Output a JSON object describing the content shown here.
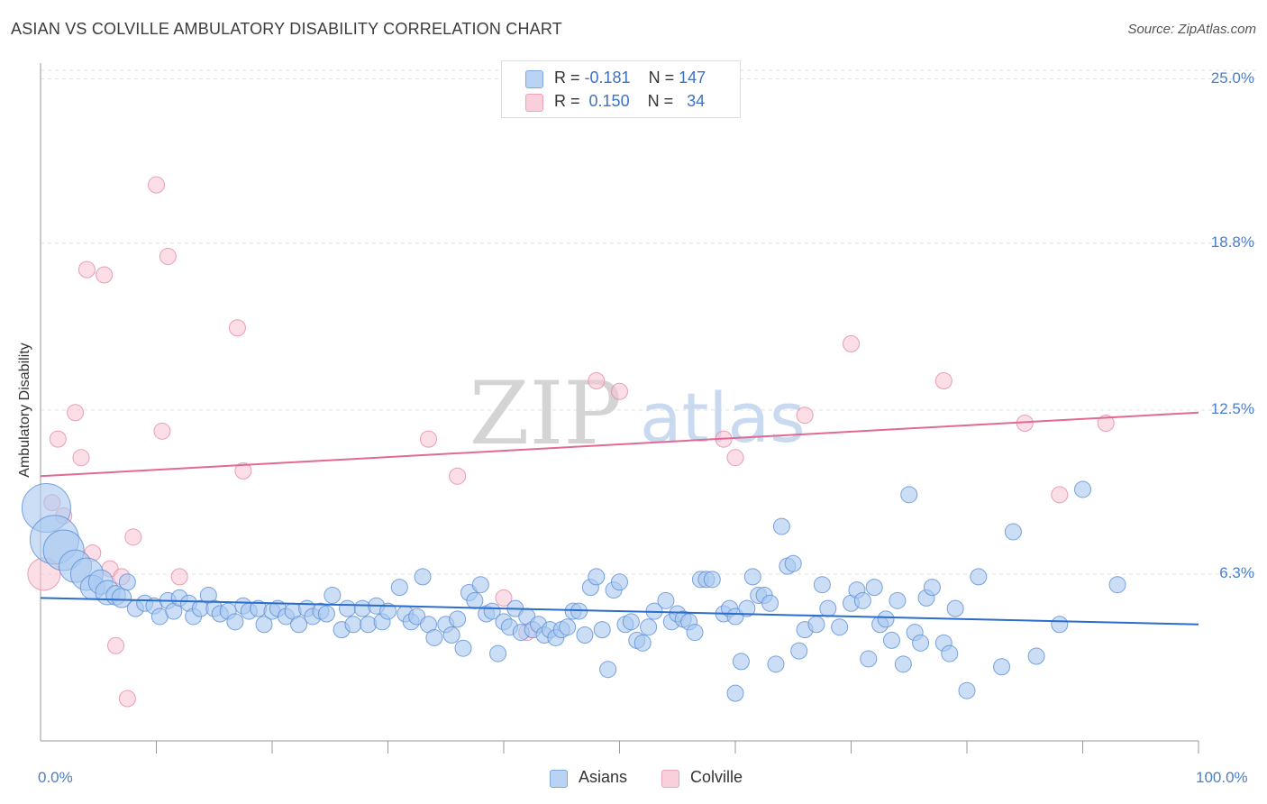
{
  "title": "ASIAN VS COLVILLE AMBULATORY DISABILITY CORRELATION CHART",
  "source": "Source: ZipAtlas.com",
  "watermark": {
    "zip": "ZIP",
    "atlas": "atlas"
  },
  "colors": {
    "asians_fill": "#a9c8f0",
    "asians_stroke": "#5b8fd6",
    "asians_line": "#2b6ccc",
    "colville_fill": "#f7c3d2",
    "colville_stroke": "#e48aa6",
    "colville_line": "#e06a93",
    "tick_label": "#4a7fcb"
  },
  "legend": {
    "rows": [
      {
        "r_label": "R = ",
        "r_value": "-0.181",
        "n_label": "N = ",
        "n_value": "147"
      },
      {
        "r_label": "R = ",
        "r_value": "0.150",
        "n_label": "N = ",
        "n_value": "34"
      }
    ]
  },
  "bottom_legend": {
    "asians": "Asians",
    "colville": "Colville"
  },
  "chart_data": {
    "type": "scatter",
    "ylabel": "Ambulatory Disability",
    "xlim": [
      0,
      100
    ],
    "ylim": [
      0,
      25.6
    ],
    "y_ticks": [
      {
        "value": 6.3,
        "label": "6.3%"
      },
      {
        "value": 12.5,
        "label": "12.5%"
      },
      {
        "value": 18.8,
        "label": "18.8%"
      },
      {
        "value": 25.0,
        "label": "25.0%"
      }
    ],
    "x_tick_labels": [
      {
        "value": 0,
        "label": "0.0%"
      },
      {
        "value": 100,
        "label": "100.0%"
      }
    ],
    "series": [
      {
        "name": "Asians",
        "trend": {
          "x": [
            0,
            100
          ],
          "y": [
            5.4,
            4.4
          ]
        },
        "points": [
          [
            0.5,
            8.8,
            3
          ],
          [
            1.2,
            7.6,
            3
          ],
          [
            2.0,
            7.2,
            2.5
          ],
          [
            3.0,
            6.6,
            2
          ],
          [
            4.0,
            6.3,
            2
          ],
          [
            4.5,
            5.8,
            1.5
          ],
          [
            5.2,
            6.0,
            1.5
          ],
          [
            5.8,
            5.6,
            1.5
          ],
          [
            6.5,
            5.5,
            1.2
          ],
          [
            7.0,
            5.4,
            1.2
          ],
          [
            7.5,
            6.0,
            1
          ],
          [
            8.2,
            5.0,
            1
          ],
          [
            9.0,
            5.2,
            1
          ],
          [
            9.8,
            5.1,
            1
          ],
          [
            10.3,
            4.7,
            1
          ],
          [
            11.0,
            5.3,
            1
          ],
          [
            11.5,
            4.9,
            1
          ],
          [
            12.0,
            5.4,
            1
          ],
          [
            12.8,
            5.2,
            1
          ],
          [
            13.2,
            4.7,
            1
          ],
          [
            13.8,
            5.0,
            1
          ],
          [
            14.5,
            5.5,
            1
          ],
          [
            15.0,
            5.0,
            1
          ],
          [
            15.5,
            4.8,
            1
          ],
          [
            16.2,
            4.9,
            1
          ],
          [
            16.8,
            4.5,
            1
          ],
          [
            17.5,
            5.1,
            1
          ],
          [
            18.0,
            4.9,
            1
          ],
          [
            18.8,
            5.0,
            1
          ],
          [
            19.3,
            4.4,
            1
          ],
          [
            20.0,
            4.9,
            1
          ],
          [
            20.5,
            5.0,
            1
          ],
          [
            21.2,
            4.7,
            1
          ],
          [
            21.8,
            4.9,
            1
          ],
          [
            22.3,
            4.4,
            1
          ],
          [
            23.0,
            5.0,
            1
          ],
          [
            23.5,
            4.7,
            1
          ],
          [
            24.2,
            4.9,
            1
          ],
          [
            24.7,
            4.8,
            1
          ],
          [
            25.2,
            5.5,
            1
          ],
          [
            26.0,
            4.2,
            1
          ],
          [
            26.5,
            5.0,
            1
          ],
          [
            27.0,
            4.4,
            1
          ],
          [
            27.8,
            5.0,
            1
          ],
          [
            28.3,
            4.4,
            1
          ],
          [
            29.0,
            5.1,
            1
          ],
          [
            29.5,
            4.5,
            1
          ],
          [
            30.0,
            4.9,
            1
          ],
          [
            31.0,
            5.8,
            1
          ],
          [
            31.5,
            4.8,
            1
          ],
          [
            32.0,
            4.5,
            1
          ],
          [
            32.5,
            4.7,
            1
          ],
          [
            33.0,
            6.2,
            1
          ],
          [
            33.5,
            4.4,
            1
          ],
          [
            34.0,
            3.9,
            1
          ],
          [
            35.0,
            4.4,
            1
          ],
          [
            35.5,
            4.0,
            1
          ],
          [
            36.0,
            4.6,
            1
          ],
          [
            36.5,
            3.5,
            1
          ],
          [
            37.0,
            5.6,
            1
          ],
          [
            37.5,
            5.3,
            1
          ],
          [
            38.0,
            5.9,
            1
          ],
          [
            38.5,
            4.8,
            1
          ],
          [
            39.0,
            4.9,
            1
          ],
          [
            39.5,
            3.3,
            1
          ],
          [
            40.0,
            4.5,
            1
          ],
          [
            40.5,
            4.3,
            1
          ],
          [
            41.0,
            5.0,
            1
          ],
          [
            41.5,
            4.1,
            1
          ],
          [
            42.0,
            4.7,
            1
          ],
          [
            42.5,
            4.2,
            1
          ],
          [
            43.0,
            4.4,
            1
          ],
          [
            43.5,
            4.0,
            1
          ],
          [
            44.0,
            4.2,
            1
          ],
          [
            44.5,
            3.9,
            1
          ],
          [
            45.0,
            4.2,
            1
          ],
          [
            45.5,
            4.3,
            1
          ],
          [
            46.0,
            4.9,
            1
          ],
          [
            46.5,
            4.9,
            1
          ],
          [
            47.0,
            4.0,
            1
          ],
          [
            47.5,
            5.8,
            1
          ],
          [
            48.0,
            6.2,
            1
          ],
          [
            48.5,
            4.2,
            1
          ],
          [
            49.0,
            2.7,
            1
          ],
          [
            49.5,
            5.7,
            1
          ],
          [
            50.0,
            6.0,
            1
          ],
          [
            50.5,
            4.4,
            1
          ],
          [
            51.0,
            4.5,
            1
          ],
          [
            51.5,
            3.8,
            1
          ],
          [
            52.0,
            3.7,
            1
          ],
          [
            52.5,
            4.3,
            1
          ],
          [
            53.0,
            4.9,
            1
          ],
          [
            54.0,
            5.3,
            1
          ],
          [
            54.5,
            4.5,
            1
          ],
          [
            55.0,
            4.8,
            1
          ],
          [
            55.5,
            4.6,
            1
          ],
          [
            56.0,
            4.5,
            1
          ],
          [
            56.5,
            4.1,
            1
          ],
          [
            57.0,
            6.1,
            1
          ],
          [
            57.5,
            6.1,
            1
          ],
          [
            58.0,
            6.1,
            1
          ],
          [
            59.0,
            4.8,
            1
          ],
          [
            59.5,
            5.0,
            1
          ],
          [
            60.0,
            4.7,
            1
          ],
          [
            60.5,
            3.0,
            1
          ],
          [
            61.0,
            5.0,
            1
          ],
          [
            61.5,
            6.2,
            1
          ],
          [
            62.0,
            5.5,
            1
          ],
          [
            62.5,
            5.5,
            1
          ],
          [
            63.0,
            5.2,
            1
          ],
          [
            63.5,
            2.9,
            1
          ],
          [
            64.0,
            8.1,
            1
          ],
          [
            64.5,
            6.6,
            1
          ],
          [
            65.0,
            6.7,
            1
          ],
          [
            65.5,
            3.4,
            1
          ],
          [
            66.0,
            4.2,
            1
          ],
          [
            67.0,
            4.4,
            1
          ],
          [
            67.5,
            5.9,
            1
          ],
          [
            68.0,
            5.0,
            1
          ],
          [
            69.0,
            4.3,
            1
          ],
          [
            70.0,
            5.2,
            1
          ],
          [
            70.5,
            5.7,
            1
          ],
          [
            71.0,
            5.3,
            1
          ],
          [
            71.5,
            3.1,
            1
          ],
          [
            72.0,
            5.8,
            1
          ],
          [
            72.5,
            4.4,
            1
          ],
          [
            73.0,
            4.6,
            1
          ],
          [
            73.5,
            3.8,
            1
          ],
          [
            74.0,
            5.3,
            1
          ],
          [
            74.5,
            2.9,
            1
          ],
          [
            75.0,
            9.3,
            1
          ],
          [
            75.5,
            4.1,
            1
          ],
          [
            76.0,
            3.7,
            1
          ],
          [
            76.5,
            5.4,
            1
          ],
          [
            77.0,
            5.8,
            1
          ],
          [
            78.0,
            3.7,
            1
          ],
          [
            78.5,
            3.3,
            1
          ],
          [
            79.0,
            5.0,
            1
          ],
          [
            80.0,
            1.9,
            1
          ],
          [
            81.0,
            6.2,
            1
          ],
          [
            83.0,
            2.8,
            1
          ],
          [
            84.0,
            7.9,
            1
          ],
          [
            86.0,
            3.2,
            1
          ],
          [
            88.0,
            4.4,
            1
          ],
          [
            90.0,
            9.5,
            1
          ],
          [
            93.0,
            5.9,
            1
          ],
          [
            60.0,
            1.8,
            1
          ]
        ]
      },
      {
        "name": "Colville",
        "trend": {
          "x": [
            0,
            100
          ],
          "y": [
            10.0,
            12.4
          ]
        },
        "points": [
          [
            0.3,
            6.3,
            2
          ],
          [
            1.0,
            9.0,
            1
          ],
          [
            1.5,
            11.4,
            1
          ],
          [
            2.0,
            8.5,
            1
          ],
          [
            3.0,
            12.4,
            1
          ],
          [
            3.5,
            10.7,
            1
          ],
          [
            4.0,
            17.8,
            1
          ],
          [
            4.5,
            7.1,
            1
          ],
          [
            5.5,
            17.6,
            1
          ],
          [
            6.0,
            6.5,
            1
          ],
          [
            6.5,
            3.6,
            1
          ],
          [
            7.0,
            6.2,
            1
          ],
          [
            7.5,
            1.6,
            1
          ],
          [
            8.0,
            7.7,
            1
          ],
          [
            10.0,
            21.0,
            1
          ],
          [
            10.5,
            11.7,
            1
          ],
          [
            11.0,
            18.3,
            1
          ],
          [
            12.0,
            6.2,
            1
          ],
          [
            17.0,
            15.6,
            1
          ],
          [
            17.5,
            10.2,
            1
          ],
          [
            33.5,
            11.4,
            1
          ],
          [
            36.0,
            10.0,
            1
          ],
          [
            40.0,
            5.4,
            1
          ],
          [
            42.0,
            4.1,
            1
          ],
          [
            48.0,
            13.6,
            1
          ],
          [
            50.0,
            13.2,
            1
          ],
          [
            59.0,
            11.4,
            1
          ],
          [
            60.0,
            10.7,
            1
          ],
          [
            66.0,
            12.3,
            1
          ],
          [
            70.0,
            15.0,
            1
          ],
          [
            78.0,
            13.6,
            1
          ],
          [
            85.0,
            12.0,
            1
          ],
          [
            88.0,
            9.3,
            1
          ],
          [
            92.0,
            12.0,
            1
          ]
        ]
      }
    ]
  }
}
